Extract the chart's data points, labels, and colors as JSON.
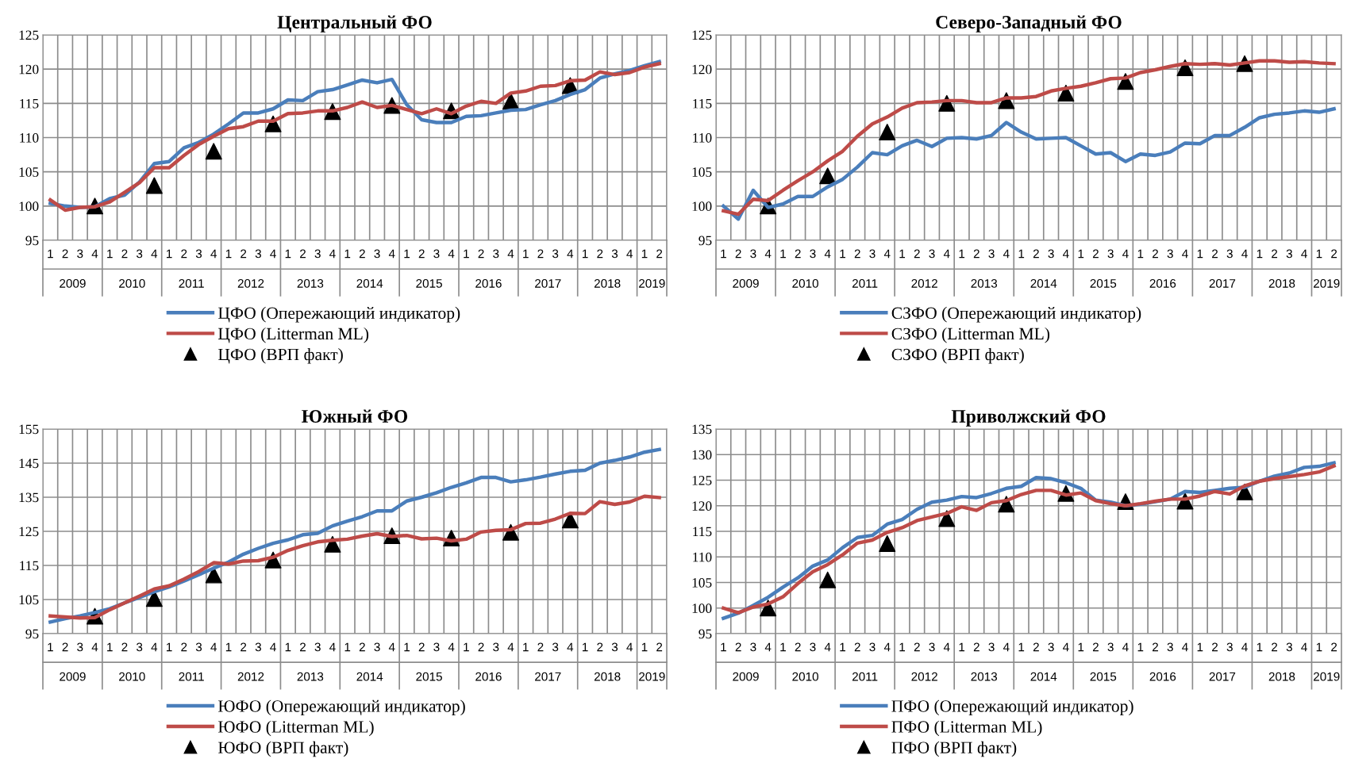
{
  "chart_data": [
    {
      "type": "line",
      "title": "Центральный ФО",
      "categories": [
        "1",
        "2",
        "3",
        "4",
        "1",
        "2",
        "3",
        "4",
        "1",
        "2",
        "3",
        "4",
        "1",
        "2",
        "3",
        "4",
        "1",
        "2",
        "3",
        "4",
        "1",
        "2",
        "3",
        "4",
        "1",
        "2",
        "3",
        "4",
        "1",
        "2",
        "3",
        "4",
        "1",
        "2",
        "3",
        "4",
        "1",
        "2",
        "3",
        "4",
        "1",
        "2"
      ],
      "annotations": [
        "2009",
        "2010",
        "2011",
        "2012",
        "2013",
        "2014",
        "2015",
        "2016",
        "2017",
        "2018",
        "2019"
      ],
      "ylim": [
        95,
        125
      ],
      "yticks": [
        95,
        100,
        105,
        110,
        115,
        120,
        125
      ],
      "grid": true,
      "legend": "bottom",
      "series": [
        {
          "name": "ЦФО (Опережающий индикатор)",
          "type": "line",
          "color": "#4a7ebb",
          "values": [
            100.4,
            100.0,
            99.8,
            99.9,
            101.1,
            101.6,
            103.5,
            106.2,
            106.5,
            108.5,
            109.3,
            110.5,
            112.0,
            113.6,
            113.6,
            114.2,
            115.5,
            115.4,
            116.7,
            117.0,
            117.7,
            118.4,
            118.0,
            118.5,
            114.8,
            112.6,
            112.2,
            112.2,
            113.1,
            113.2,
            113.6,
            114.0,
            114.1,
            114.8,
            115.4,
            116.3,
            117.0,
            118.7,
            119.3,
            119.8,
            120.5,
            121.1
          ]
        },
        {
          "name": "ЦФО (Litterman ML)",
          "type": "line",
          "color": "#be4b48",
          "values": [
            100.9,
            99.4,
            99.8,
            99.9,
            100.6,
            102.0,
            103.4,
            105.6,
            105.6,
            107.4,
            109.0,
            110.2,
            111.3,
            111.6,
            112.4,
            112.4,
            113.5,
            113.6,
            113.9,
            113.9,
            114.4,
            115.2,
            114.4,
            114.7,
            114.1,
            113.5,
            114.2,
            113.5,
            114.6,
            115.3,
            115.0,
            116.5,
            116.8,
            117.5,
            117.6,
            118.3,
            118.4,
            119.6,
            119.2,
            119.5,
            120.3,
            120.8
          ]
        },
        {
          "name": "ЦФО (ВРП факт)",
          "type": "scatter",
          "marker": "triangle",
          "color": "#000000",
          "values": [
            null,
            null,
            null,
            100.0,
            null,
            null,
            null,
            103.0,
            null,
            null,
            null,
            108.0,
            null,
            null,
            null,
            112.0,
            null,
            null,
            null,
            113.8,
            null,
            null,
            null,
            114.7,
            null,
            null,
            null,
            113.9,
            null,
            null,
            null,
            115.3,
            null,
            null,
            null,
            117.6,
            null,
            null,
            null,
            null,
            null,
            null
          ]
        }
      ]
    },
    {
      "type": "line",
      "title": "Северо-Западный ФО",
      "categories": [
        "1",
        "2",
        "3",
        "4",
        "1",
        "2",
        "3",
        "4",
        "1",
        "2",
        "3",
        "4",
        "1",
        "2",
        "3",
        "4",
        "1",
        "2",
        "3",
        "4",
        "1",
        "2",
        "3",
        "4",
        "1",
        "2",
        "3",
        "4",
        "1",
        "2",
        "3",
        "4",
        "1",
        "2",
        "3",
        "4",
        "1",
        "2",
        "3",
        "4",
        "1",
        "2"
      ],
      "annotations": [
        "2009",
        "2010",
        "2011",
        "2012",
        "2013",
        "2014",
        "2015",
        "2016",
        "2017",
        "2018",
        "2019"
      ],
      "ylim": [
        95,
        125
      ],
      "yticks": [
        95,
        100,
        105,
        110,
        115,
        120,
        125
      ],
      "grid": true,
      "legend": "bottom",
      "series": [
        {
          "name": "СЗФО (Опережающий индикатор)",
          "type": "line",
          "color": "#4a7ebb",
          "values": [
            100.0,
            98.1,
            102.3,
            99.8,
            100.3,
            101.4,
            101.4,
            102.8,
            103.9,
            105.7,
            107.8,
            107.5,
            108.8,
            109.6,
            108.7,
            109.9,
            110.0,
            109.8,
            110.3,
            112.2,
            110.8,
            109.8,
            109.9,
            110.0,
            108.8,
            107.6,
            107.8,
            106.5,
            107.6,
            107.4,
            107.9,
            109.2,
            109.1,
            110.3,
            110.3,
            111.5,
            112.9,
            113.4,
            113.6,
            113.9,
            113.7,
            114.2
          ]
        },
        {
          "name": "СЗФО (Litterman ML)",
          "type": "line",
          "color": "#be4b48",
          "values": [
            99.3,
            98.8,
            101.0,
            100.8,
            102.3,
            103.7,
            105.0,
            106.6,
            108.0,
            110.2,
            112.0,
            113.0,
            114.3,
            115.1,
            115.2,
            115.4,
            115.4,
            115.1,
            115.1,
            115.8,
            115.8,
            116.0,
            116.8,
            117.2,
            117.5,
            118.0,
            118.6,
            118.7,
            119.5,
            119.9,
            120.4,
            120.8,
            120.7,
            120.8,
            120.6,
            120.9,
            121.2,
            121.2,
            121.0,
            121.1,
            120.9,
            120.8
          ]
        },
        {
          "name": "СЗФО (ВРП факт)",
          "type": "scatter",
          "marker": "triangle",
          "color": "#000000",
          "values": [
            null,
            null,
            null,
            100.0,
            null,
            null,
            null,
            104.4,
            null,
            null,
            null,
            110.8,
            null,
            null,
            null,
            115.0,
            null,
            null,
            null,
            115.4,
            null,
            null,
            null,
            116.5,
            null,
            null,
            null,
            118.2,
            null,
            null,
            null,
            120.2,
            null,
            null,
            null,
            120.8,
            null,
            null,
            null,
            null,
            null,
            null
          ]
        }
      ]
    },
    {
      "type": "line",
      "title": "Южный ФО",
      "categories": [
        "1",
        "2",
        "3",
        "4",
        "1",
        "2",
        "3",
        "4",
        "1",
        "2",
        "3",
        "4",
        "1",
        "2",
        "3",
        "4",
        "1",
        "2",
        "3",
        "4",
        "1",
        "2",
        "3",
        "4",
        "1",
        "2",
        "3",
        "4",
        "1",
        "2",
        "3",
        "4",
        "1",
        "2",
        "3",
        "4",
        "1",
        "2",
        "3",
        "4",
        "1",
        "2"
      ],
      "annotations": [
        "2009",
        "2010",
        "2011",
        "2012",
        "2013",
        "2014",
        "2015",
        "2016",
        "2017",
        "2018",
        "2019"
      ],
      "ylim": [
        95,
        155
      ],
      "yticks": [
        95,
        105,
        115,
        125,
        135,
        145,
        155
      ],
      "grid": true,
      "legend": "bottom",
      "series": [
        {
          "name": "ЮФО (Опережающий индикатор)",
          "type": "line",
          "color": "#4a7ebb",
          "values": [
            98.4,
            99.4,
            100.2,
            101.2,
            102.3,
            104.0,
            105.6,
            107.3,
            108.7,
            110.4,
            112.3,
            114.2,
            116.0,
            118.3,
            120.0,
            121.5,
            122.5,
            124.0,
            124.4,
            126.6,
            128.0,
            129.3,
            131.0,
            131.0,
            133.9,
            135.0,
            136.3,
            137.9,
            139.2,
            140.8,
            140.8,
            139.5,
            140.1,
            140.9,
            141.8,
            142.6,
            142.9,
            145.0,
            145.8,
            146.8,
            148.2,
            149.0
          ]
        },
        {
          "name": "ЮФО (Litterman ML)",
          "type": "line",
          "color": "#be4b48",
          "values": [
            100.2,
            99.9,
            99.6,
            99.7,
            102.0,
            104.0,
            106.0,
            108.1,
            109.0,
            111.0,
            113.2,
            115.8,
            115.4,
            116.3,
            116.4,
            117.4,
            119.4,
            120.8,
            121.9,
            122.4,
            122.7,
            123.6,
            124.3,
            123.5,
            123.8,
            122.8,
            123.0,
            122.2,
            122.7,
            124.8,
            125.3,
            125.5,
            127.3,
            127.4,
            128.6,
            130.3,
            130.2,
            133.7,
            132.9,
            133.6,
            135.3,
            134.9
          ]
        },
        {
          "name": "ЮФО (ВРП факт)",
          "type": "scatter",
          "marker": "triangle",
          "color": "#000000",
          "values": [
            null,
            null,
            null,
            100.1,
            null,
            null,
            null,
            105.3,
            null,
            null,
            null,
            112.2,
            null,
            null,
            null,
            116.6,
            null,
            null,
            null,
            121.2,
            null,
            null,
            null,
            123.7,
            null,
            null,
            null,
            123.0,
            null,
            null,
            null,
            124.7,
            null,
            null,
            null,
            128.3,
            null,
            null,
            null,
            null,
            null,
            null
          ]
        }
      ]
    },
    {
      "type": "line",
      "title": "Приволжский ФО",
      "categories": [
        "1",
        "2",
        "3",
        "4",
        "1",
        "2",
        "3",
        "4",
        "1",
        "2",
        "3",
        "4",
        "1",
        "2",
        "3",
        "4",
        "1",
        "2",
        "3",
        "4",
        "1",
        "2",
        "3",
        "4",
        "1",
        "2",
        "3",
        "4",
        "1",
        "2",
        "3",
        "4",
        "1",
        "2",
        "3",
        "4",
        "1",
        "2",
        "3",
        "4",
        "1",
        "2"
      ],
      "annotations": [
        "2009",
        "2010",
        "2011",
        "2012",
        "2013",
        "2014",
        "2015",
        "2016",
        "2017",
        "2018",
        "2019"
      ],
      "ylim": [
        95,
        135
      ],
      "yticks": [
        95,
        100,
        105,
        110,
        115,
        120,
        125,
        130,
        135
      ],
      "grid": true,
      "legend": "bottom",
      "series": [
        {
          "name": "ПФО (Опережающий индикатор)",
          "type": "line",
          "color": "#4a7ebb",
          "values": [
            98.0,
            99.0,
            100.5,
            102.1,
            104.1,
            105.9,
            108.2,
            109.4,
            111.8,
            113.8,
            114.2,
            116.4,
            117.3,
            119.3,
            120.7,
            121.1,
            121.8,
            121.6,
            122.4,
            123.4,
            123.8,
            125.5,
            125.3,
            124.5,
            123.4,
            121.1,
            120.7,
            120.0,
            120.3,
            120.8,
            121.3,
            122.8,
            122.6,
            123.0,
            123.4,
            123.6,
            124.8,
            125.8,
            126.4,
            127.5,
            127.7,
            128.4
          ]
        },
        {
          "name": "ПФО (Litterman ML)",
          "type": "line",
          "color": "#be4b48",
          "values": [
            100.0,
            99.1,
            100.2,
            100.8,
            102.2,
            104.8,
            107.1,
            108.5,
            110.4,
            112.7,
            113.3,
            114.8,
            115.7,
            117.1,
            117.8,
            118.5,
            119.8,
            119.1,
            120.6,
            121.0,
            122.2,
            123.0,
            123.0,
            122.1,
            122.5,
            121.0,
            120.4,
            120.0,
            120.4,
            120.9,
            121.3,
            121.3,
            121.9,
            122.8,
            122.3,
            123.9,
            124.8,
            125.3,
            125.7,
            126.1,
            126.6,
            127.8
          ]
        },
        {
          "name": "ПФО (ВРП факт)",
          "type": "scatter",
          "marker": "triangle",
          "color": "#000000",
          "values": [
            null,
            null,
            null,
            100.0,
            null,
            null,
            null,
            105.5,
            null,
            null,
            null,
            112.6,
            null,
            null,
            null,
            117.5,
            null,
            null,
            null,
            120.3,
            null,
            null,
            null,
            122.4,
            null,
            null,
            null,
            120.8,
            null,
            null,
            null,
            120.9,
            null,
            null,
            null,
            122.7,
            null,
            null,
            null,
            null,
            null,
            null
          ]
        }
      ]
    }
  ]
}
